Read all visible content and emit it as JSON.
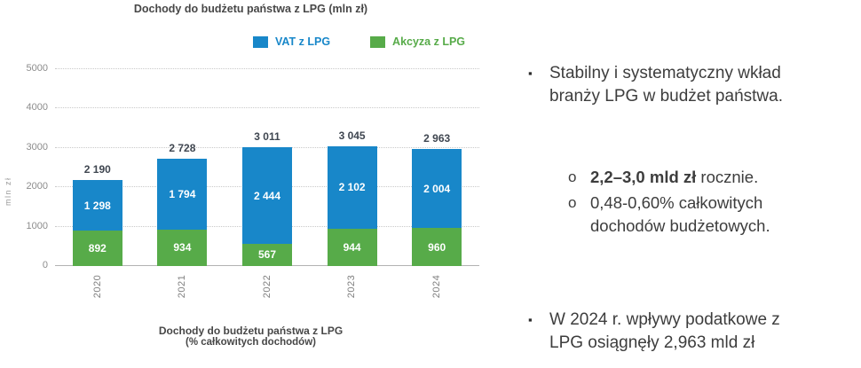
{
  "chart": {
    "title": "Dochody do budżetu państwa z LPG (mln zł)",
    "legend": [
      {
        "label": "VAT z LPG",
        "color": "#1887c9"
      },
      {
        "label": "Akcyza z LPG",
        "color": "#57ab49"
      }
    ],
    "footer_title_line1": "Dochody do budżetu państwa z LPG",
    "footer_title_line2": "(% całkowitych dochodów)"
  },
  "chart_data": {
    "type": "bar",
    "stacked": true,
    "title": "Dochody do budżetu państwa z LPG (mln zł)",
    "categories": [
      "2020",
      "2021",
      "2022",
      "2023",
      "2024"
    ],
    "series": [
      {
        "name": "Akcyza z LPG",
        "color": "#57ab49",
        "values": [
          892,
          934,
          567,
          944,
          960
        ]
      },
      {
        "name": "VAT z LPG",
        "color": "#1887c9",
        "values": [
          1298,
          1794,
          2444,
          2102,
          2004
        ]
      }
    ],
    "totals": [
      2190,
      2728,
      3011,
      3045,
      2963
    ],
    "xlabel": "",
    "ylabel": "mln zł",
    "ylim": [
      0,
      5000
    ],
    "yticks": [
      0,
      1000,
      2000,
      3000,
      4000,
      5000
    ],
    "grid": true,
    "legend_position": "top"
  },
  "notes": {
    "bullet_marker": "▪",
    "sub_marker": "o",
    "bullet1": "Stabilny i systematyczny wkład branży LPG w budżet państwa.",
    "sub1_bold": "2,2–3,0 mld zł",
    "sub1_rest": " rocznie.",
    "sub2": "0,48-0,60% całkowitych dochodów budżetowych.",
    "bullet2": "W 2024 r. wpływy podatkowe z LPG osiągnęły 2,963 mld zł"
  }
}
